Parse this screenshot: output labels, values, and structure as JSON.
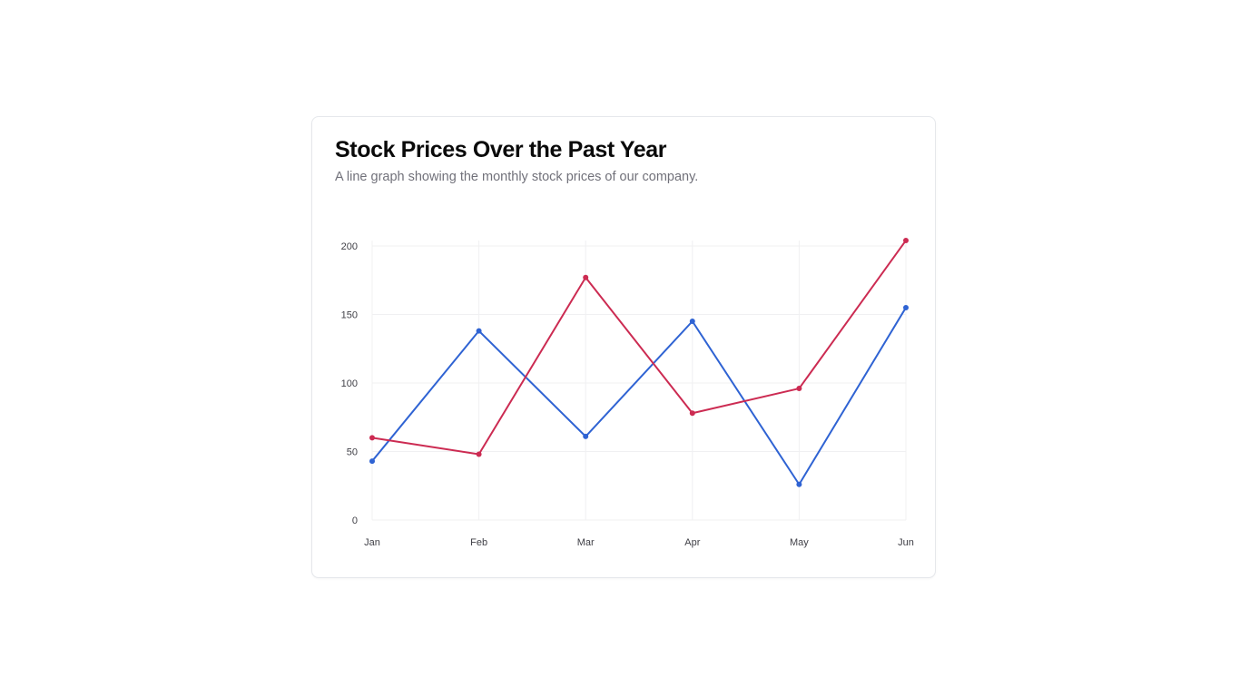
{
  "card": {
    "title": "Stock Prices Over the Past Year",
    "subtitle": "A line graph showing the monthly stock prices of our company."
  },
  "chart_data": {
    "type": "line",
    "title": "",
    "xlabel": "",
    "ylabel": "",
    "categories": [
      "Jan",
      "Feb",
      "Mar",
      "Apr",
      "May",
      "Jun"
    ],
    "y_ticks": [
      "0",
      "50",
      "100",
      "150",
      "200"
    ],
    "ylim": [
      0,
      200
    ],
    "grid": true,
    "legend": "none",
    "series": [
      {
        "color": "#2f63d3",
        "values": [
          43,
          138,
          61,
          145,
          26,
          155
        ]
      },
      {
        "color": "#cc2b52",
        "values": [
          60,
          48,
          177,
          78,
          96,
          204
        ]
      }
    ]
  }
}
